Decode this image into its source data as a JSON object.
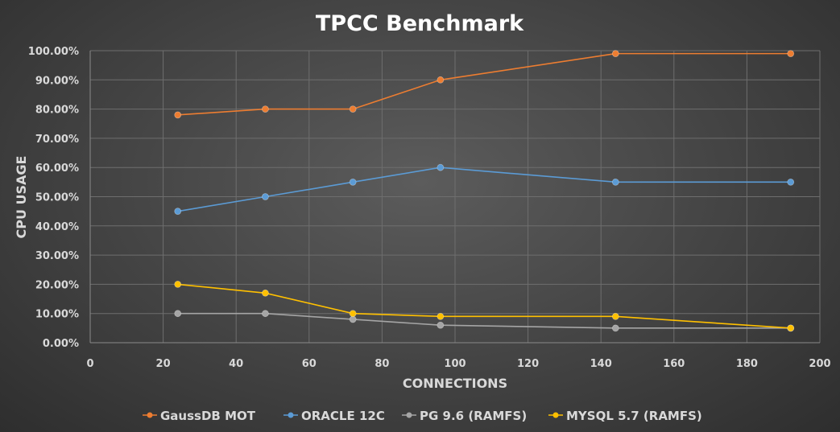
{
  "chart_data": {
    "type": "line",
    "title": "TPCC Benchmark",
    "xlabel": "CONNECTIONS",
    "ylabel": "CPU USAGE",
    "xlim": [
      0,
      200
    ],
    "ylim": [
      0,
      100
    ],
    "x_ticks": [
      0,
      20,
      40,
      60,
      80,
      100,
      120,
      140,
      160,
      180,
      200
    ],
    "x_tick_labels": [
      "0",
      "20",
      "40",
      "60",
      "80",
      "100",
      "120",
      "140",
      "160",
      "180",
      "200"
    ],
    "y_ticks": [
      0,
      10,
      20,
      30,
      40,
      50,
      60,
      70,
      80,
      90,
      100
    ],
    "y_tick_labels": [
      "0.00%",
      "10.00%",
      "20.00%",
      "30.00%",
      "40.00%",
      "50.00%",
      "60.00%",
      "70.00%",
      "80.00%",
      "90.00%",
      "100.00%"
    ],
    "grid": true,
    "legend_position": "bottom",
    "x": [
      24,
      48,
      72,
      96,
      144,
      192
    ],
    "series": [
      {
        "name": "GaussDB MOT",
        "color": "#ed7d31",
        "values": [
          78,
          80,
          80,
          90,
          99,
          99
        ]
      },
      {
        "name": "ORACLE 12C",
        "color": "#5b9bd5",
        "values": [
          45,
          50,
          55,
          60,
          55,
          55
        ]
      },
      {
        "name": "PG 9.6 (RAMFS)",
        "color": "#a5a5a5",
        "values": [
          10,
          10,
          8,
          6,
          5,
          5
        ]
      },
      {
        "name": "MYSQL 5.7 (RAMFS)",
        "color": "#ffc000",
        "values": [
          20,
          17,
          10,
          9,
          9,
          5
        ]
      }
    ]
  }
}
